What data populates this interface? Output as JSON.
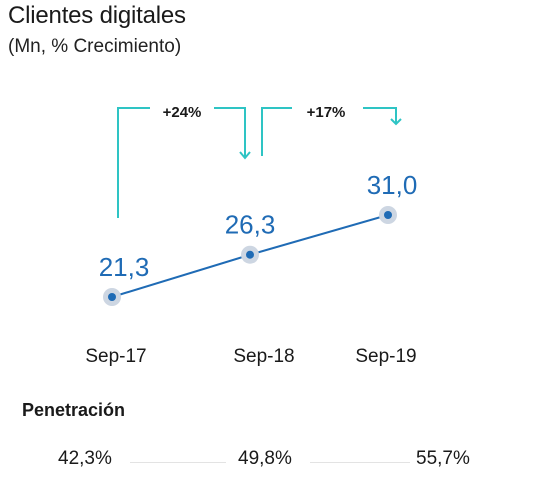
{
  "title": "Clientes digitales",
  "subtitle": "(Mn, % Crecimiento)",
  "colors": {
    "line": "#1f6bb5",
    "marker_halo": "#cdd6e2",
    "bracket": "#2ec4c4",
    "value_text": "#1f6bb5"
  },
  "chart_data": {
    "type": "line",
    "title": "Clientes digitales",
    "subtitle": "(Mn, % Crecimiento)",
    "categories": [
      "Sep-17",
      "Sep-18",
      "Sep-19"
    ],
    "values": [
      21.3,
      26.3,
      31.0
    ],
    "value_labels": [
      "21,3",
      "26,3",
      "31,0"
    ],
    "growth": [
      {
        "from": "Sep-17",
        "to": "Sep-18",
        "label": "+24%"
      },
      {
        "from": "Sep-18",
        "to": "Sep-19",
        "label": "+17%"
      }
    ],
    "ylim": [
      15,
      35
    ],
    "grid": false
  },
  "penetration": {
    "title": "Penetración",
    "values": [
      "42,3%",
      "49,8%",
      "55,7%"
    ]
  }
}
